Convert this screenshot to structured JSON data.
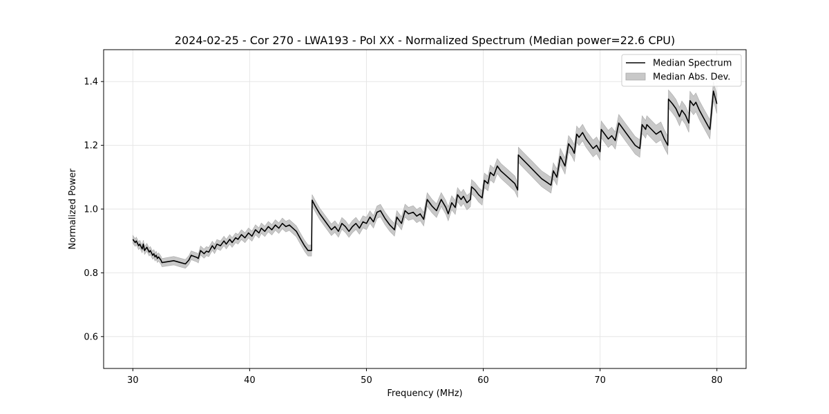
{
  "chart_data": {
    "type": "line",
    "title": "2024-02-25 - Cor 270 - LWA193 - Pol XX - Normalized Spectrum (Median power=22.6 CPU)",
    "xlabel": "Frequency (MHz)",
    "ylabel": "Normalized Power",
    "xlim": [
      27.5,
      82.5
    ],
    "ylim": [
      0.5,
      1.5
    ],
    "xticks": [
      30,
      40,
      50,
      60,
      70,
      80
    ],
    "yticks": [
      0.6,
      0.8,
      1.0,
      1.2,
      1.4
    ],
    "xtick_labels": [
      "30",
      "40",
      "50",
      "60",
      "70",
      "80"
    ],
    "ytick_labels": [
      "0.6",
      "0.8",
      "1.0",
      "1.2",
      "1.4"
    ],
    "grid": true,
    "legend_position": "top-right",
    "colors": {
      "line": "#000000",
      "band": "#c8c8c8",
      "band_edge": "#a8a8a8"
    },
    "series": [
      {
        "name": "Median Spectrum",
        "x": [
          30.0,
          30.2,
          30.3,
          30.5,
          30.6,
          30.8,
          30.9,
          31.0,
          31.2,
          31.4,
          31.5,
          31.7,
          31.8,
          31.9,
          32.0,
          32.1,
          32.2,
          32.4,
          32.5,
          33.0,
          33.5,
          34.0,
          34.5,
          34.8,
          35.0,
          35.5,
          35.6,
          35.8,
          36.1,
          36.3,
          36.5,
          36.8,
          37.0,
          37.2,
          37.5,
          37.8,
          38.0,
          38.3,
          38.5,
          38.8,
          39.0,
          39.3,
          39.6,
          39.9,
          40.2,
          40.5,
          40.8,
          41.0,
          41.3,
          41.6,
          41.9,
          42.2,
          42.5,
          42.8,
          43.1,
          43.4,
          43.7,
          44.0,
          44.3,
          44.7,
          45.0,
          45.3,
          45.35,
          45.6,
          46.0,
          46.5,
          47.0,
          47.3,
          47.6,
          47.9,
          48.2,
          48.5,
          48.8,
          49.1,
          49.4,
          49.7,
          50.0,
          50.3,
          50.6,
          50.9,
          51.2,
          51.6,
          52.0,
          52.4,
          52.6,
          53.0,
          53.3,
          53.6,
          54.0,
          54.3,
          54.6,
          54.9,
          55.2,
          55.6,
          56.0,
          56.4,
          56.8,
          57.0,
          57.3,
          57.6,
          57.8,
          58.1,
          58.3,
          58.6,
          58.9,
          59.0,
          59.3,
          59.6,
          59.9,
          60.1,
          60.4,
          60.6,
          60.9,
          61.2,
          61.5,
          61.8,
          62.1,
          62.4,
          62.7,
          62.95,
          63.0,
          63.4,
          63.8,
          64.2,
          64.6,
          65.0,
          65.4,
          65.8,
          66.0,
          66.3,
          66.6,
          66.8,
          67.0,
          67.3,
          67.6,
          67.8,
          68.0,
          68.2,
          68.5,
          68.8,
          69.1,
          69.4,
          69.7,
          70.0,
          70.1,
          70.4,
          70.7,
          71.0,
          71.3,
          71.6,
          71.8,
          72.2,
          72.6,
          73.0,
          73.4,
          73.6,
          73.9,
          74.0,
          74.4,
          74.8,
          75.2,
          75.5,
          75.8,
          75.85,
          76.2,
          76.5,
          76.8,
          77.0,
          77.3,
          77.6,
          77.7,
          78.0,
          78.2,
          78.5,
          78.8,
          79.1,
          79.4,
          79.7,
          80.0
        ],
        "values": [
          0.905,
          0.895,
          0.9,
          0.885,
          0.89,
          0.875,
          0.89,
          0.87,
          0.88,
          0.865,
          0.87,
          0.855,
          0.86,
          0.85,
          0.855,
          0.845,
          0.85,
          0.84,
          0.832,
          0.835,
          0.838,
          0.833,
          0.828,
          0.84,
          0.855,
          0.848,
          0.845,
          0.87,
          0.86,
          0.868,
          0.865,
          0.885,
          0.875,
          0.89,
          0.885,
          0.9,
          0.89,
          0.905,
          0.895,
          0.91,
          0.905,
          0.92,
          0.91,
          0.925,
          0.915,
          0.935,
          0.925,
          0.94,
          0.93,
          0.945,
          0.935,
          0.95,
          0.94,
          0.955,
          0.945,
          0.95,
          0.94,
          0.93,
          0.91,
          0.885,
          0.87,
          0.87,
          1.028,
          1.01,
          0.985,
          0.96,
          0.935,
          0.945,
          0.93,
          0.955,
          0.945,
          0.93,
          0.945,
          0.955,
          0.94,
          0.96,
          0.955,
          0.975,
          0.96,
          0.99,
          0.995,
          0.97,
          0.95,
          0.935,
          0.975,
          0.955,
          0.995,
          0.985,
          0.99,
          0.978,
          0.985,
          0.968,
          1.03,
          1.01,
          0.995,
          1.03,
          1.005,
          0.985,
          1.02,
          1.005,
          1.045,
          1.03,
          1.04,
          1.02,
          1.03,
          1.07,
          1.06,
          1.045,
          1.035,
          1.09,
          1.08,
          1.115,
          1.105,
          1.135,
          1.12,
          1.11,
          1.1,
          1.09,
          1.08,
          1.06,
          1.17,
          1.155,
          1.14,
          1.125,
          1.11,
          1.095,
          1.085,
          1.075,
          1.12,
          1.1,
          1.165,
          1.15,
          1.135,
          1.205,
          1.19,
          1.175,
          1.235,
          1.225,
          1.24,
          1.22,
          1.205,
          1.19,
          1.2,
          1.18,
          1.25,
          1.235,
          1.22,
          1.23,
          1.215,
          1.27,
          1.26,
          1.24,
          1.22,
          1.2,
          1.19,
          1.265,
          1.25,
          1.265,
          1.25,
          1.235,
          1.245,
          1.22,
          1.2,
          1.345,
          1.33,
          1.315,
          1.29,
          1.31,
          1.295,
          1.27,
          1.34,
          1.325,
          1.335,
          1.31,
          1.29,
          1.27,
          1.25,
          1.37,
          1.33
        ],
        "line_width": 1.6
      },
      {
        "name": "Median Abs. Dev.",
        "type": "band",
        "half_width_low_freq": 0.012,
        "half_width_high_freq": 0.03
      }
    ],
    "legend": [
      {
        "label": "Median Spectrum",
        "kind": "line"
      },
      {
        "label": "Median Abs. Dev.",
        "kind": "band"
      }
    ]
  }
}
